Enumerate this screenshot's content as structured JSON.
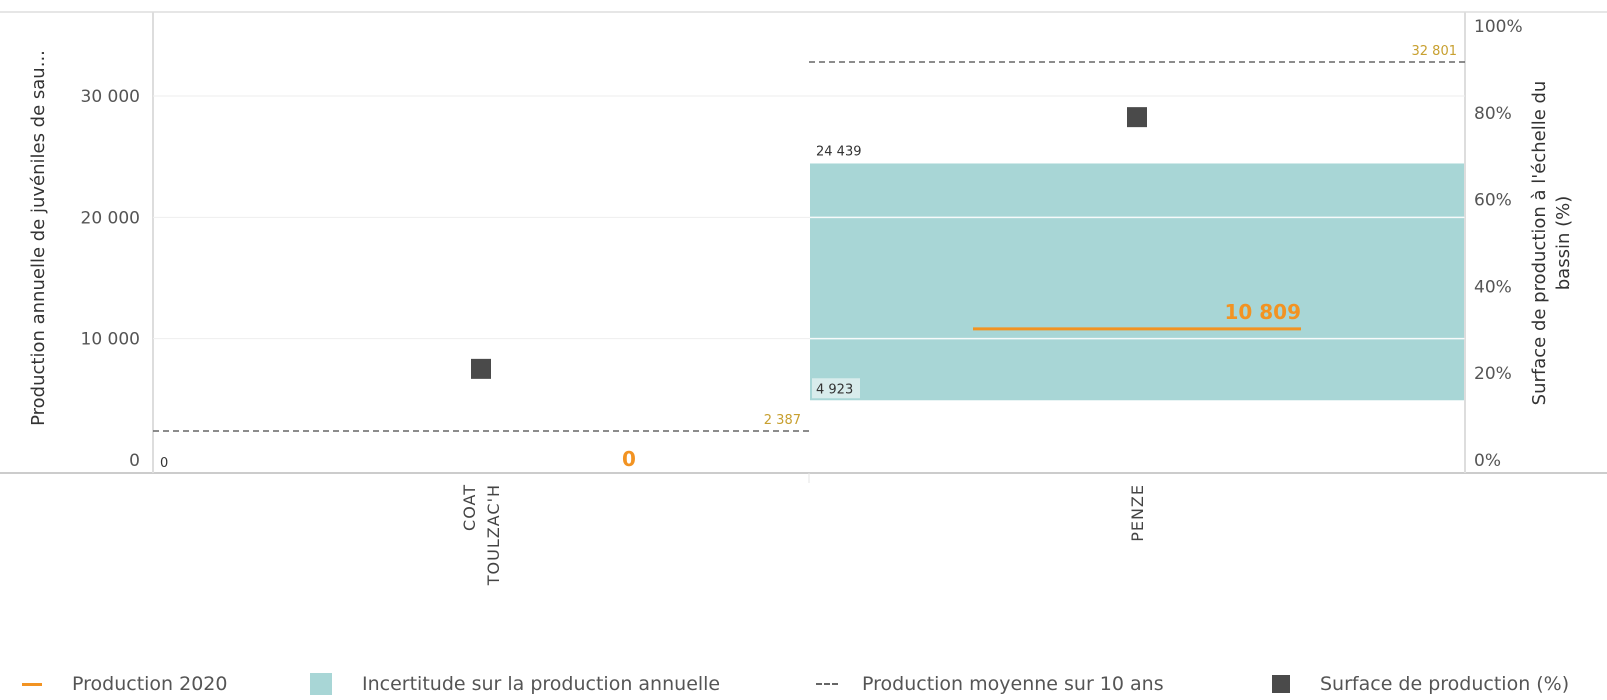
{
  "chart_data": {
    "type": "bar",
    "categories": [
      "COAT TOULZAC'H",
      "PENZE"
    ],
    "category_lines": [
      [
        "COAT",
        "TOULZAC'H"
      ],
      [
        "PENZE"
      ]
    ],
    "y_left": {
      "label": "Production annuelle de juvéniles de sau...",
      "range": [
        0,
        37000
      ],
      "ticks": [
        0,
        10000,
        20000,
        30000
      ],
      "tick_labels": [
        "0",
        "10 000",
        "20 000",
        "30 000"
      ]
    },
    "y_right": {
      "label_lines": [
        "Surface de production à l'échelle du",
        "bassin (%)"
      ],
      "range": [
        0,
        100
      ],
      "ticks": [
        0,
        20,
        40,
        60,
        80,
        100
      ],
      "tick_labels": [
        "0%",
        "20%",
        "40%",
        "60%",
        "80%",
        "100%"
      ]
    },
    "series": [
      {
        "name": "Production 2020",
        "kind": "line",
        "color": "#f29322",
        "values": [
          0,
          10809
        ],
        "labels": [
          "0",
          "10 809"
        ]
      },
      {
        "name": "Incertitude sur la production annuelle",
        "kind": "range",
        "color": "#a8d6d6",
        "low": [
          0,
          4923
        ],
        "high": [
          0,
          24439
        ],
        "low_labels": [
          "0",
          "4 923"
        ],
        "high_labels": [
          "",
          "24 439"
        ]
      },
      {
        "name": "Production moyenne sur 10 ans",
        "kind": "dashed",
        "color": "#666666",
        "values": [
          2387,
          32801
        ],
        "labels": [
          "2 387",
          "32 801"
        ]
      },
      {
        "name": "Surface de production (%)",
        "kind": "marker",
        "color": "#4a4a4a",
        "axis": "right",
        "values": [
          21,
          79
        ]
      }
    ],
    "grid": true,
    "legend_position": "bottom"
  },
  "legend": {
    "items": [
      {
        "label": "Production 2020",
        "icon": "orange-line"
      },
      {
        "label": "Incertitude sur la production annuelle",
        "icon": "teal-box"
      },
      {
        "label": "Production moyenne sur 10 ans",
        "icon": "dashed-line"
      },
      {
        "label": "Surface de production (%)",
        "icon": "dark-square"
      }
    ]
  },
  "colors": {
    "accent": "#f29322",
    "band": "#a8d6d6",
    "marker": "#4a4a4a",
    "avg_label": "#c8a030"
  }
}
